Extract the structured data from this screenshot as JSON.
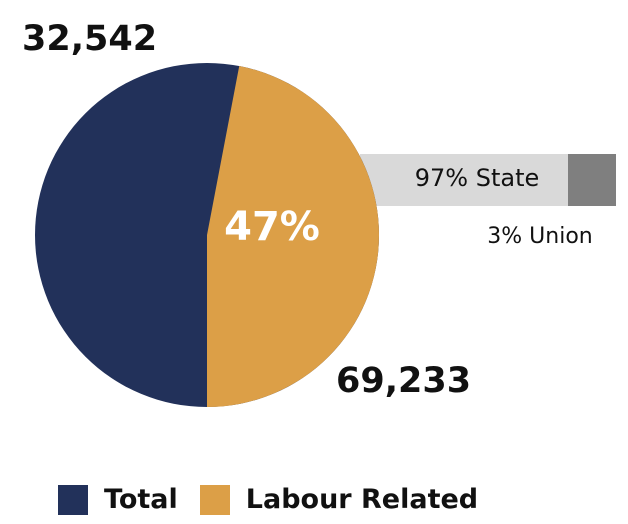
{
  "chart_data": {
    "type": "pie",
    "slices": [
      {
        "label": "Total",
        "value": 53,
        "color": "#22315a"
      },
      {
        "label": "Labour Related",
        "value": 47,
        "color": "#dc9f47"
      }
    ],
    "center_label": "47%",
    "value_labels": {
      "total": "32,542",
      "labour_related": "69,233"
    },
    "breakdown": {
      "type": "bar",
      "segments": [
        {
          "label": "97% State",
          "value": 97,
          "color": "#d9d9d9"
        },
        {
          "label": "3% Union",
          "value": 3,
          "color": "#7f7f7f"
        }
      ]
    },
    "legend": [
      "Total",
      "Labour Related"
    ],
    "legend_position": "bottom"
  }
}
